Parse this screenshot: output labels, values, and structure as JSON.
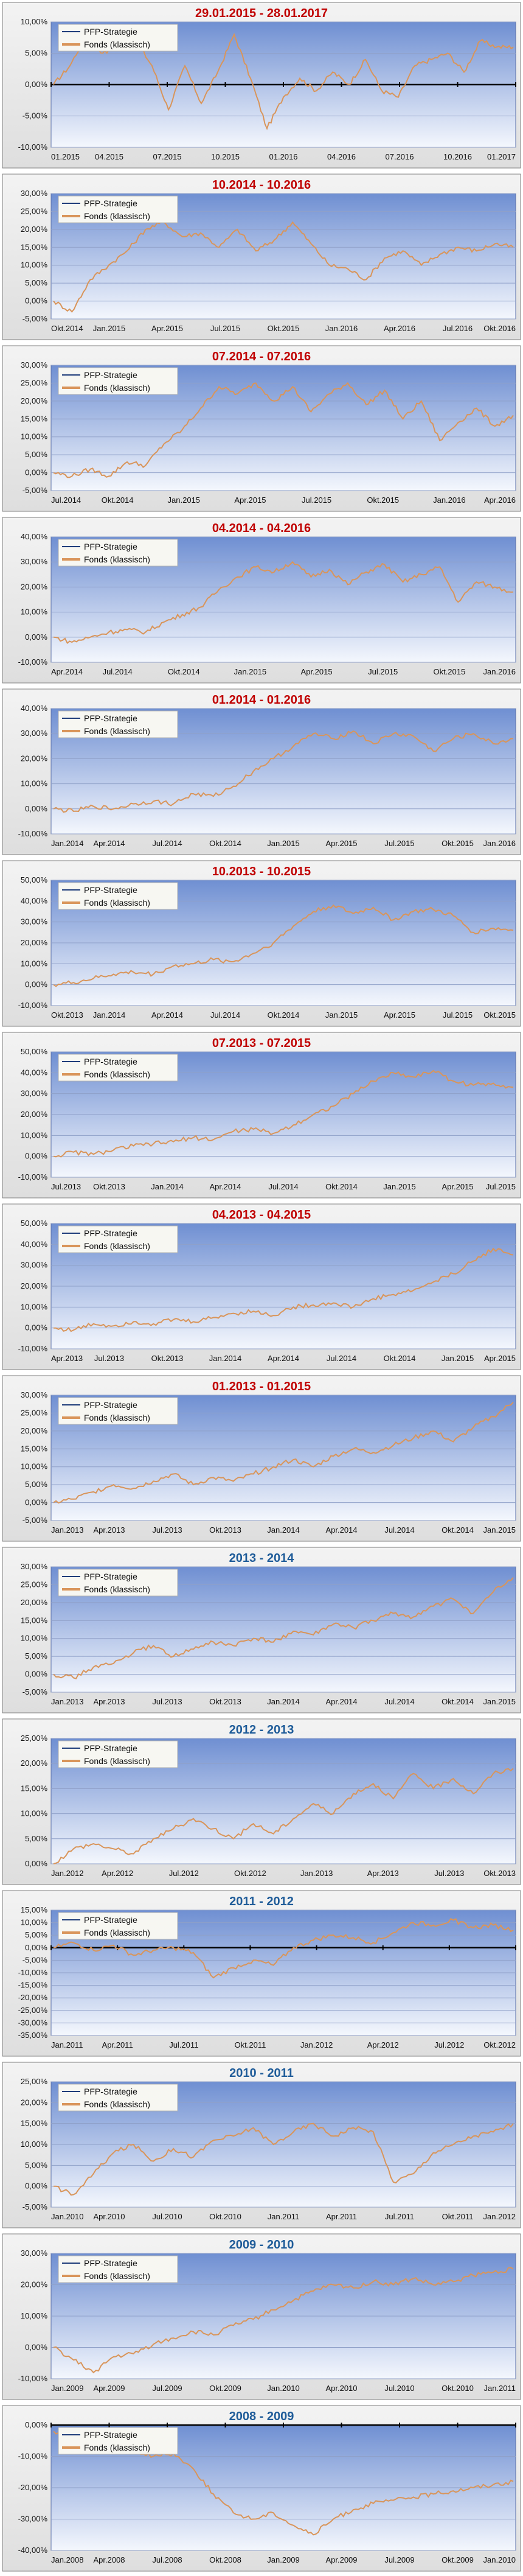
{
  "legend": {
    "strategy": "PFP-Strategie",
    "fund": "Fonds (klassisch)"
  },
  "colors": {
    "title_red": "#c00000",
    "title_blue": "#1f5c99",
    "strategy": "#1f3d7a",
    "fund": "#d9955a",
    "plot_top": "#6f8fd2",
    "plot_bottom": "#f4f7fd"
  },
  "chart_data": [
    {
      "type": "line",
      "title": "29.01.2015 - 28.01.2017",
      "title_color": "red",
      "ylim": [
        -10,
        10
      ],
      "yticks": [
        "10,00%",
        "5,00%",
        "0,00%",
        "-5,00%",
        "-10,00%"
      ],
      "xticks": [
        "01.2015",
        "04.2015",
        "07.2015",
        "10.2015",
        "01.2016",
        "04.2016",
        "07.2016",
        "10.2016",
        "01.2017"
      ],
      "baseline_zero": true,
      "series": [
        {
          "values": [
            0,
            3,
            8,
            5,
            6,
            7,
            3,
            -4,
            3,
            -3,
            2,
            8,
            1,
            -7,
            -2,
            1,
            -1,
            2,
            0,
            4,
            -1,
            -2,
            3,
            4,
            5,
            2,
            7,
            6,
            6
          ]
        }
      ]
    },
    {
      "type": "line",
      "title": "10.2014 - 10.2016",
      "title_color": "red",
      "ylim": [
        -5,
        30
      ],
      "yticks": [
        "30,00%",
        "25,00%",
        "20,00%",
        "15,00%",
        "10,00%",
        "5,00%",
        "0,00%",
        "-5,00%"
      ],
      "xticks": [
        "Okt.2014",
        "Jan.2015",
        "Apr.2015",
        "Jul.2015",
        "Okt.2015",
        "Jan.2016",
        "Apr.2016",
        "Jul.2016",
        "Okt.2016"
      ],
      "series": [
        {
          "values": [
            0,
            -3,
            6,
            10,
            14,
            20,
            22,
            18,
            19,
            15,
            20,
            14,
            17,
            22,
            16,
            10,
            9,
            6,
            12,
            14,
            10,
            13,
            15,
            14,
            16,
            15
          ]
        }
      ]
    },
    {
      "type": "line",
      "title": "07.2014 - 07.2016",
      "title_color": "red",
      "ylim": [
        -5,
        30
      ],
      "yticks": [
        "30,00%",
        "25,00%",
        "20,00%",
        "15,00%",
        "10,00%",
        "5,00%",
        "0,00%",
        "-5,00%"
      ],
      "xticks": [
        "Jul.2014",
        "Okt.2014",
        "Jan.2015",
        "Apr.2015",
        "Jul.2015",
        "Okt.2015",
        "Jan.2016",
        "Apr.2016"
      ],
      "series": [
        {
          "values": [
            0,
            -1,
            1,
            -1,
            3,
            2,
            8,
            12,
            18,
            24,
            22,
            25,
            20,
            24,
            17,
            22,
            25,
            19,
            23,
            15,
            20,
            9,
            14,
            18,
            13,
            16
          ]
        }
      ]
    },
    {
      "type": "line",
      "title": "04.2014 - 04.2016",
      "title_color": "red",
      "ylim": [
        -10,
        40
      ],
      "yticks": [
        "40,00%",
        "30,00%",
        "20,00%",
        "10,00%",
        "0,00%",
        "-10,00%"
      ],
      "xticks": [
        "Apr.2014",
        "Jul.2014",
        "Okt.2014",
        "Jan.2015",
        "Apr.2015",
        "Jul.2015",
        "Okt.2015",
        "Jan.2016"
      ],
      "series": [
        {
          "values": [
            0,
            -2,
            0,
            2,
            3,
            2,
            6,
            9,
            12,
            19,
            24,
            28,
            26,
            30,
            24,
            27,
            21,
            26,
            29,
            22,
            25,
            28,
            14,
            22,
            20,
            18
          ]
        }
      ]
    },
    {
      "type": "line",
      "title": "01.2014 - 01.2016",
      "title_color": "red",
      "ylim": [
        -10,
        40
      ],
      "yticks": [
        "40,00%",
        "30,00%",
        "20,00%",
        "10,00%",
        "0,00%",
        "-10,00%"
      ],
      "xticks": [
        "Jan.2014",
        "Apr.2014",
        "Jul.2014",
        "Okt.2014",
        "Jan.2015",
        "Apr.2015",
        "Jul.2015",
        "Okt.2015",
        "Jan.2016"
      ],
      "series": [
        {
          "values": [
            0,
            -1,
            1,
            0,
            2,
            3,
            2,
            6,
            5,
            9,
            15,
            20,
            25,
            30,
            28,
            31,
            26,
            30,
            29,
            23,
            28,
            30,
            26,
            28
          ]
        }
      ]
    },
    {
      "type": "line",
      "title": "10.2013 - 10.2015",
      "title_color": "red",
      "ylim": [
        -10,
        50
      ],
      "yticks": [
        "50,00%",
        "40,00%",
        "30,00%",
        "20,00%",
        "10,00%",
        "0,00%",
        "-10,00%"
      ],
      "xticks": [
        "Okt.2013",
        "Jan.2014",
        "Apr.2014",
        "Jul.2014",
        "Okt.2014",
        "Jan.2015",
        "Apr.2015",
        "Jul.2015",
        "Okt.2015"
      ],
      "series": [
        {
          "values": [
            0,
            1,
            3,
            5,
            6,
            5,
            9,
            10,
            12,
            11,
            15,
            20,
            28,
            35,
            38,
            34,
            37,
            31,
            35,
            36,
            33,
            25,
            27,
            26
          ]
        }
      ]
    },
    {
      "type": "line",
      "title": "07.2013 - 07.2015",
      "title_color": "red",
      "ylim": [
        -10,
        50
      ],
      "yticks": [
        "50,00%",
        "40,00%",
        "30,00%",
        "20,00%",
        "10,00%",
        "0,00%",
        "-10,00%"
      ],
      "xticks": [
        "Jul.2013",
        "Okt.2013",
        "Jan.2014",
        "Apr.2014",
        "Jul.2014",
        "Okt.2014",
        "Jan.2015",
        "Apr.2015",
        "Jul.2015"
      ],
      "series": [
        {
          "values": [
            0,
            2,
            1,
            3,
            5,
            6,
            7,
            9,
            8,
            12,
            13,
            11,
            15,
            20,
            24,
            30,
            36,
            40,
            38,
            41,
            36,
            34,
            35,
            33
          ]
        }
      ]
    },
    {
      "type": "line",
      "title": "04.2013 - 04.2015",
      "title_color": "red",
      "ylim": [
        -10,
        50
      ],
      "yticks": [
        "50,00%",
        "40,00%",
        "30,00%",
        "20,00%",
        "10,00%",
        "0,00%",
        "-10,00%"
      ],
      "xticks": [
        "Apr.2013",
        "Jul.2013",
        "Okt.2013",
        "Jan.2014",
        "Apr.2014",
        "Jul.2014",
        "Okt.2014",
        "Jan.2015",
        "Apr.2015"
      ],
      "series": [
        {
          "values": [
            0,
            -1,
            2,
            1,
            3,
            2,
            4,
            3,
            5,
            7,
            8,
            6,
            10,
            11,
            12,
            10,
            14,
            16,
            18,
            22,
            26,
            32,
            38,
            35
          ]
        }
      ]
    },
    {
      "type": "line",
      "title": "01.2013 - 01.2015",
      "title_color": "red",
      "ylim": [
        -5,
        30
      ],
      "yticks": [
        "30,00%",
        "25,00%",
        "20,00%",
        "15,00%",
        "10,00%",
        "5,00%",
        "0,00%",
        "-5,00%"
      ],
      "xticks": [
        "Jan.2013",
        "Apr.2013",
        "Jul.2013",
        "Okt.2013",
        "Jan.2014",
        "Apr.2014",
        "Jul.2014",
        "Okt.2014",
        "Jan.2015"
      ],
      "series": [
        {
          "values": [
            0,
            1,
            3,
            5,
            4,
            6,
            8,
            5,
            7,
            6,
            8,
            10,
            12,
            10,
            13,
            15,
            14,
            16,
            18,
            20,
            17,
            21,
            24,
            28
          ]
        }
      ]
    },
    {
      "type": "line",
      "title": "2013 - 2014",
      "title_color": "blue",
      "ylim": [
        -5,
        30
      ],
      "yticks": [
        "30,00%",
        "25,00%",
        "20,00%",
        "15,00%",
        "10,00%",
        "5,00%",
        "0,00%",
        "-5,00%"
      ],
      "xticks": [
        "Jan.2013",
        "Apr.2013",
        "Jul.2013",
        "Okt.2013",
        "Jan.2014",
        "Apr.2014",
        "Jul.2014",
        "Okt.2014",
        "Jan.2015"
      ],
      "series": [
        {
          "values": [
            0,
            -1,
            2,
            3,
            6,
            8,
            5,
            7,
            9,
            8,
            10,
            9,
            12,
            11,
            14,
            13,
            15,
            17,
            16,
            19,
            21,
            17,
            23,
            27
          ]
        }
      ]
    },
    {
      "type": "line",
      "title": "2012 - 2013",
      "title_color": "blue",
      "ylim": [
        0,
        25
      ],
      "yticks": [
        "25,00%",
        "20,00%",
        "15,00%",
        "10,00%",
        "5,00%",
        "0,00%"
      ],
      "xticks": [
        "Jan.2012",
        "Apr.2012",
        "Jul.2012",
        "Okt.2012",
        "Jan.2013",
        "Apr.2013",
        "Jul.2013",
        "Okt.2013"
      ],
      "series": [
        {
          "values": [
            0,
            3,
            4,
            3,
            2,
            5,
            7,
            9,
            7,
            5,
            8,
            6,
            9,
            12,
            10,
            14,
            16,
            13,
            18,
            15,
            17,
            14,
            18,
            19
          ]
        }
      ]
    },
    {
      "type": "line",
      "title": "2011 - 2012",
      "title_color": "blue",
      "ylim": [
        -35,
        15
      ],
      "yticks": [
        "15,00%",
        "10,00%",
        "5,00%",
        "0,00%",
        "-5,00%",
        "-10,00%",
        "-15,00%",
        "-20,00%",
        "-25,00%",
        "-30,00%",
        "-35,00%"
      ],
      "xticks": [
        "Jan.2011",
        "Apr.2011",
        "Jul.2011",
        "Okt.2011",
        "Jan.2012",
        "Apr.2012",
        "Jul.2012",
        "Okt.2012"
      ],
      "baseline_zero": true,
      "series": [
        {
          "values": [
            0,
            2,
            -1,
            1,
            -3,
            -1,
            0,
            -2,
            -12,
            -8,
            -5,
            -7,
            0,
            3,
            5,
            4,
            2,
            6,
            10,
            9,
            11,
            8,
            9,
            7
          ]
        }
      ]
    },
    {
      "type": "line",
      "title": "2010 - 2011",
      "title_color": "blue",
      "ylim": [
        -5,
        25
      ],
      "yticks": [
        "25,00%",
        "20,00%",
        "15,00%",
        "10,00%",
        "5,00%",
        "0,00%",
        "-5,00%"
      ],
      "xticks": [
        "Jan.2010",
        "Apr.2010",
        "Jul.2010",
        "Okt.2010",
        "Jan.2011",
        "Apr.2011",
        "Jul.2011",
        "Okt.2011",
        "Jan.2012"
      ],
      "series": [
        {
          "values": [
            0,
            -2,
            3,
            8,
            10,
            6,
            9,
            7,
            11,
            12,
            14,
            10,
            13,
            15,
            12,
            14,
            13,
            1,
            3,
            8,
            10,
            12,
            13,
            15
          ]
        }
      ]
    },
    {
      "type": "line",
      "title": "2009 - 2010",
      "title_color": "blue",
      "ylim": [
        -10,
        30
      ],
      "yticks": [
        "30,00%",
        "20,00%",
        "10,00%",
        "0,00%",
        "-10,00%"
      ],
      "xticks": [
        "Jan.2009",
        "Apr.2009",
        "Jul.2009",
        "Okt.2009",
        "Jan.2010",
        "Apr.2010",
        "Jul.2010",
        "Okt.2010",
        "Jan.2011"
      ],
      "series": [
        {
          "values": [
            0,
            -4,
            -8,
            -3,
            -2,
            1,
            3,
            5,
            4,
            7,
            9,
            12,
            15,
            18,
            20,
            19,
            21,
            20,
            22,
            20,
            21,
            23,
            24,
            25
          ]
        }
      ]
    },
    {
      "type": "line",
      "title": "2008 - 2009",
      "title_color": "blue",
      "ylim": [
        -40,
        0
      ],
      "yticks": [
        "0,00%",
        "-10,00%",
        "-20,00%",
        "-30,00%",
        "-40,00%"
      ],
      "xticks": [
        "Jan.2008",
        "Apr.2008",
        "Jul.2008",
        "Okt.2008",
        "Jan.2009",
        "Apr.2009",
        "Jul.2009",
        "Okt.2009",
        "Jan.2010"
      ],
      "baseline_zero": true,
      "series": [
        {
          "values": [
            -2,
            -5,
            -6,
            -4,
            -8,
            -10,
            -9,
            -14,
            -22,
            -28,
            -30,
            -28,
            -32,
            -35,
            -30,
            -27,
            -25,
            -24,
            -23,
            -22,
            -21,
            -20,
            -19,
            -18
          ]
        }
      ]
    }
  ]
}
